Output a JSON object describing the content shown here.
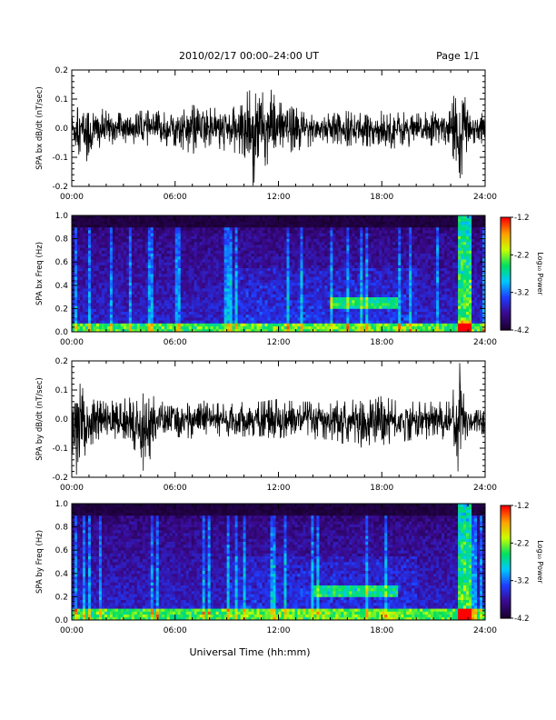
{
  "header": {
    "title": "2010/02/17  00:00–24:00 UT",
    "page": "Page 1/1"
  },
  "footer": {
    "xlabel": "Universal Time (hh:mm)"
  },
  "colorbar": {
    "label": "Log₁₀ Power",
    "ticks": [
      "-1.2",
      "-2.2",
      "-3.2",
      "-4.2"
    ],
    "range": [
      -4.2,
      -1.2
    ],
    "colors": [
      "#1a0030",
      "#3a0a8f",
      "#1e3cff",
      "#00c8ff",
      "#00e060",
      "#c8ff00",
      "#ffa000",
      "#ff0000"
    ]
  },
  "chart_data": [
    {
      "type": "line",
      "ylabel": "SPA bx dB/dt (nT/sec)",
      "xlim": [
        0,
        24
      ],
      "ylim": [
        -0.2,
        0.2
      ],
      "xticks": [
        "00:00",
        "06:00",
        "12:00",
        "18:00",
        "24:00"
      ],
      "yticks": [
        "0.2",
        "0.1",
        "0.0",
        "-0.1",
        "-0.2"
      ],
      "line_color": "#000000",
      "series": [
        {
          "x": [
            0,
            1,
            2,
            3,
            4,
            5,
            6,
            7,
            8,
            9,
            10,
            10.5,
            11,
            11.5,
            12,
            13,
            14,
            15,
            16,
            17,
            18,
            19,
            20,
            21,
            22,
            22.5,
            23,
            24
          ],
          "upper": [
            0.06,
            0.09,
            0.06,
            0.05,
            0.06,
            0.06,
            0.06,
            0.08,
            0.07,
            0.07,
            0.08,
            0.2,
            0.12,
            0.14,
            0.09,
            0.07,
            0.06,
            0.05,
            0.06,
            0.05,
            0.06,
            0.06,
            0.05,
            0.06,
            0.06,
            0.2,
            0.06,
            0.05
          ],
          "lower": [
            -0.07,
            -0.12,
            -0.06,
            -0.05,
            -0.06,
            -0.06,
            -0.06,
            -0.09,
            -0.06,
            -0.08,
            -0.09,
            -0.2,
            -0.12,
            -0.14,
            -0.09,
            -0.08,
            -0.06,
            -0.05,
            -0.06,
            -0.06,
            -0.07,
            -0.07,
            -0.06,
            -0.06,
            -0.06,
            -0.2,
            -0.06,
            -0.05
          ]
        }
      ]
    },
    {
      "type": "heatmap",
      "ylabel": "SPA bx Freq (Hz)",
      "xlim": [
        0,
        24
      ],
      "ylim": [
        0.0,
        1.0
      ],
      "xticks": [
        "00:00",
        "06:00",
        "12:00",
        "18:00",
        "24:00"
      ],
      "yticks": [
        "1.0",
        "0.8",
        "0.6",
        "0.4",
        "0.2",
        "0.0"
      ],
      "z_range": [
        -4.2,
        -1.2
      ],
      "features": {
        "low_freq_band_hz": [
          0.0,
          0.08
        ],
        "enhanced_band_hours": [
          15,
          19
        ],
        "enhanced_band_hz": [
          0.2,
          0.3
        ],
        "broadband_burst_hours": [
          22.5,
          23.2
        ]
      }
    },
    {
      "type": "line",
      "ylabel": "SPA by dB/dt (nT/sec)",
      "xlim": [
        0,
        24
      ],
      "ylim": [
        -0.2,
        0.2
      ],
      "xticks": [
        "00:00",
        "06:00",
        "12:00",
        "18:00",
        "24:00"
      ],
      "yticks": [
        "0.2",
        "0.1",
        "0.0",
        "-0.1",
        "-0.2"
      ],
      "line_color": "#000000",
      "series": [
        {
          "x": [
            0,
            0.3,
            1,
            2,
            3,
            4,
            4.2,
            5,
            6,
            7,
            8,
            9,
            10,
            11,
            12,
            13,
            14,
            15,
            16,
            17,
            18,
            19,
            20,
            21,
            22,
            22.5,
            23,
            24
          ],
          "upper": [
            0.06,
            0.14,
            0.07,
            0.06,
            0.07,
            0.08,
            0.12,
            0.06,
            0.06,
            0.07,
            0.06,
            0.05,
            0.06,
            0.06,
            0.07,
            0.06,
            0.06,
            0.06,
            0.07,
            0.06,
            0.08,
            0.06,
            0.06,
            0.06,
            0.06,
            0.2,
            0.05,
            0.05
          ],
          "lower": [
            -0.1,
            -0.2,
            -0.09,
            -0.07,
            -0.08,
            -0.12,
            -0.2,
            -0.07,
            -0.06,
            -0.07,
            -0.06,
            -0.06,
            -0.06,
            -0.06,
            -0.07,
            -0.07,
            -0.07,
            -0.07,
            -0.09,
            -0.1,
            -0.09,
            -0.08,
            -0.07,
            -0.07,
            -0.07,
            -0.2,
            -0.06,
            -0.05
          ]
        }
      ]
    },
    {
      "type": "heatmap",
      "ylabel": "SPA by Freq (Hz)",
      "xlim": [
        0,
        24
      ],
      "ylim": [
        0.0,
        1.0
      ],
      "xticks": [
        "00:00",
        "06:00",
        "12:00",
        "18:00",
        "24:00"
      ],
      "yticks": [
        "1.0",
        "0.8",
        "0.6",
        "0.4",
        "0.2",
        "0.0"
      ],
      "z_range": [
        -4.2,
        -1.2
      ],
      "features": {
        "low_freq_band_hz": [
          0.0,
          0.1
        ],
        "enhanced_band_hours": [
          14,
          19
        ],
        "enhanced_band_hz": [
          0.2,
          0.3
        ],
        "broadband_burst_hours": [
          22.5,
          23.2
        ]
      }
    }
  ]
}
